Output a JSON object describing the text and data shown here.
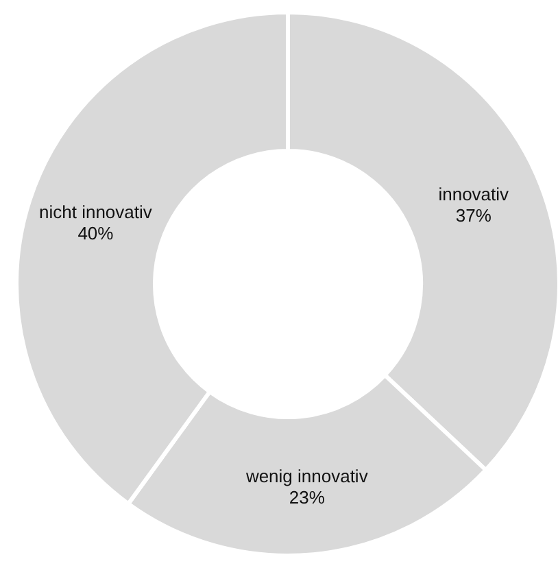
{
  "chart_data": {
    "type": "donut",
    "categories": [
      "innovativ",
      "wenig innovativ",
      "nicht innovativ"
    ],
    "values": [
      37,
      23,
      40
    ],
    "colors": [
      "#d9d9d9",
      "#d9d9d9",
      "#d9d9d9"
    ],
    "value_labels": [
      "37%",
      "23%",
      "40%"
    ]
  }
}
